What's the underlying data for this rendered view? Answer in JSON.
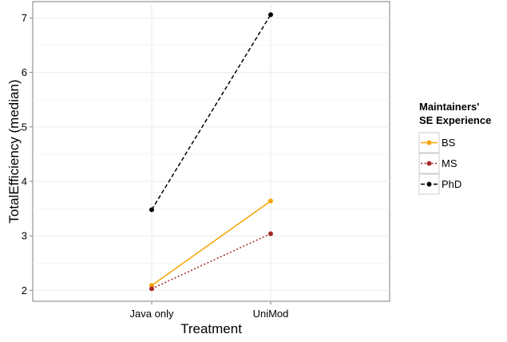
{
  "chart_data": {
    "type": "line",
    "categories": [
      "Java only",
      "UniMod"
    ],
    "xlabel": "Treatment",
    "ylabel": "TotalEfficiency (median)",
    "ylim": [
      1.8,
      7.3
    ],
    "yticks": [
      2,
      3,
      4,
      5,
      6,
      7
    ],
    "grid": true,
    "legend": {
      "title_line1": "Maintainers'",
      "title_line2": "SE Experience",
      "placement": "right"
    },
    "series": [
      {
        "name": "BS",
        "values": [
          2.09,
          3.64
        ],
        "color": "#f5a400",
        "dash": "solid"
      },
      {
        "name": "MS",
        "values": [
          2.03,
          3.04
        ],
        "color": "#a52a2a",
        "dash": "dotted"
      },
      {
        "name": "PhD",
        "values": [
          3.48,
          7.06
        ],
        "color": "#000000",
        "dash": "dashed"
      }
    ]
  }
}
